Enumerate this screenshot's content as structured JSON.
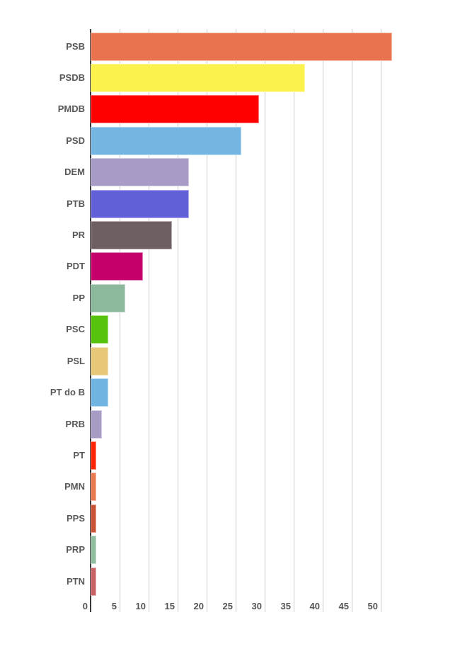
{
  "chart_data": {
    "type": "bar",
    "orientation": "horizontal",
    "title": "",
    "xlabel": "",
    "ylabel": "",
    "categories": [
      "PSB",
      "PSDB",
      "PMDB",
      "PSD",
      "DEM",
      "PTB",
      "PR",
      "PDT",
      "PP",
      "PSC",
      "PSL",
      "PT do B",
      "PRB",
      "PT",
      "PMN",
      "PPS",
      "PRP",
      "PTN"
    ],
    "values": [
      52,
      37,
      29,
      26,
      17,
      17,
      14,
      9,
      6,
      3,
      3,
      3,
      2,
      1,
      1,
      1,
      1,
      1
    ],
    "bar_colors": [
      "#E8734E",
      "#FBF24E",
      "#FE0000",
      "#74B5E1",
      "#A89CC6",
      "#6260D6",
      "#6E5F62",
      "#C6006A",
      "#8CB89C",
      "#57C20E",
      "#E7C878",
      "#70B4E2",
      "#A89CC4",
      "#FB2503",
      "#E87950",
      "#CB5236",
      "#8FBD9E",
      "#C96265"
    ],
    "x_ticks": [
      0,
      5,
      10,
      15,
      20,
      25,
      30,
      35,
      40,
      45,
      50
    ],
    "xlim": [
      0,
      53
    ],
    "grid": "vertical-only",
    "legend": "none"
  },
  "style_colors": {
    "background": "#ffffff",
    "axis_line": "#3a3a3a",
    "gridline": "#cccccc",
    "category_label_text": "#58585a",
    "tick_label_text": "#545454"
  }
}
